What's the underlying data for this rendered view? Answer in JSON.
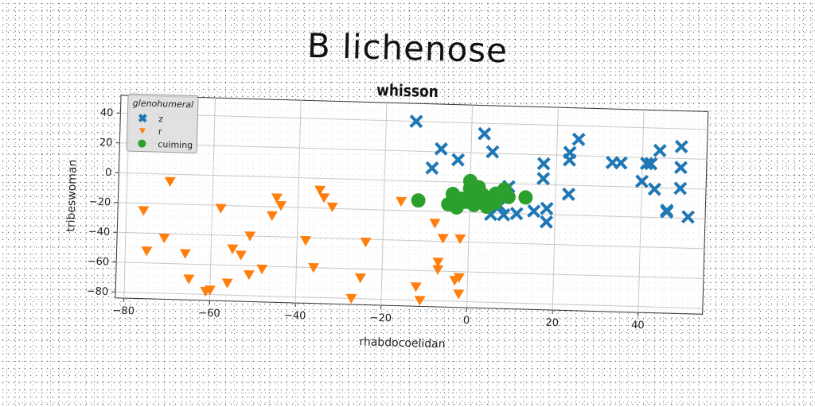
{
  "chart_data": {
    "type": "scatter",
    "title": "B lichenose",
    "subtitle": "whisson",
    "xlabel": "rhabdocoelidan",
    "ylabel": "tribeswoman",
    "xlim": [
      -82,
      55
    ],
    "ylim": [
      -84,
      52
    ],
    "xticks": [
      -80,
      -60,
      -40,
      -20,
      0,
      20,
      40
    ],
    "yticks": [
      -80,
      -60,
      -40,
      -20,
      0,
      20,
      40
    ],
    "grid": true,
    "legend": {
      "title": "glenohumeral",
      "placement": "top-left"
    },
    "series": [
      {
        "name": "z",
        "marker": "x",
        "color": "#1f77b4",
        "points": [
          [
            -13,
            40
          ],
          [
            -9,
            9
          ],
          [
            -7,
            22
          ],
          [
            -3,
            15
          ],
          [
            3,
            33
          ],
          [
            5,
            21
          ],
          [
            9,
            -2
          ],
          [
            4,
            -10
          ],
          [
            7,
            -15
          ],
          [
            5,
            -21
          ],
          [
            8,
            -21
          ],
          [
            11,
            -20
          ],
          [
            15,
            -18
          ],
          [
            18,
            -16
          ],
          [
            18,
            -25
          ],
          [
            17,
            14
          ],
          [
            17,
            4
          ],
          [
            23,
            22
          ],
          [
            23,
            17
          ],
          [
            25,
            31
          ],
          [
            23,
            -6
          ],
          [
            33,
            16
          ],
          [
            35,
            16
          ],
          [
            41,
            16
          ],
          [
            40,
            4
          ],
          [
            42,
            16
          ],
          [
            44,
            25
          ],
          [
            43,
            -1
          ],
          [
            46,
            -15
          ],
          [
            46,
            -16
          ],
          [
            49,
            28
          ],
          [
            49,
            14
          ],
          [
            49,
            0
          ],
          [
            51,
            -19
          ]
        ]
      },
      {
        "name": "r",
        "marker": "triangle-down",
        "color": "#ff7f0e",
        "points": [
          [
            -76,
            -25
          ],
          [
            -75,
            -52
          ],
          [
            -71,
            -43
          ],
          [
            -70,
            -5
          ],
          [
            -66,
            -53
          ],
          [
            -65,
            -70
          ],
          [
            -61,
            -78
          ],
          [
            -60,
            -77
          ],
          [
            -58,
            -22
          ],
          [
            -56,
            -72
          ],
          [
            -55,
            -49
          ],
          [
            -53,
            -53
          ],
          [
            -51,
            -66
          ],
          [
            -51,
            -40
          ],
          [
            -48,
            -62
          ],
          [
            -46,
            -26
          ],
          [
            -45,
            -14
          ],
          [
            -44,
            -19
          ],
          [
            -38,
            -42
          ],
          [
            -36,
            -60
          ],
          [
            -35,
            -8
          ],
          [
            -34,
            -13
          ],
          [
            -32,
            -19
          ],
          [
            -27,
            -80
          ],
          [
            -25,
            -66
          ],
          [
            -24,
            -42
          ],
          [
            -16,
            -14
          ],
          [
            -12,
            -71
          ],
          [
            -11,
            -80
          ],
          [
            -8,
            -28
          ],
          [
            -7,
            -54
          ],
          [
            -7,
            -59
          ],
          [
            -6,
            -38
          ],
          [
            -3,
            -66
          ],
          [
            -2,
            -64
          ],
          [
            -2,
            -75
          ],
          [
            -2,
            -38
          ]
        ]
      },
      {
        "name": "cuiming",
        "marker": "circle",
        "color": "#2ca02c",
        "points": [
          [
            -12,
            -13
          ],
          [
            -5,
            -15
          ],
          [
            -4,
            -8
          ],
          [
            -3,
            -17
          ],
          [
            -2,
            -11
          ],
          [
            -1,
            -13
          ],
          [
            0,
            -4
          ],
          [
            0,
            1
          ],
          [
            1,
            -9
          ],
          [
            1,
            -15
          ],
          [
            2,
            -3
          ],
          [
            3,
            -8
          ],
          [
            3,
            -12
          ],
          [
            4,
            -16
          ],
          [
            5,
            -10
          ],
          [
            6,
            -7
          ],
          [
            6,
            -13
          ],
          [
            8,
            -4
          ],
          [
            9,
            -9
          ],
          [
            13,
            -9
          ]
        ]
      }
    ]
  }
}
